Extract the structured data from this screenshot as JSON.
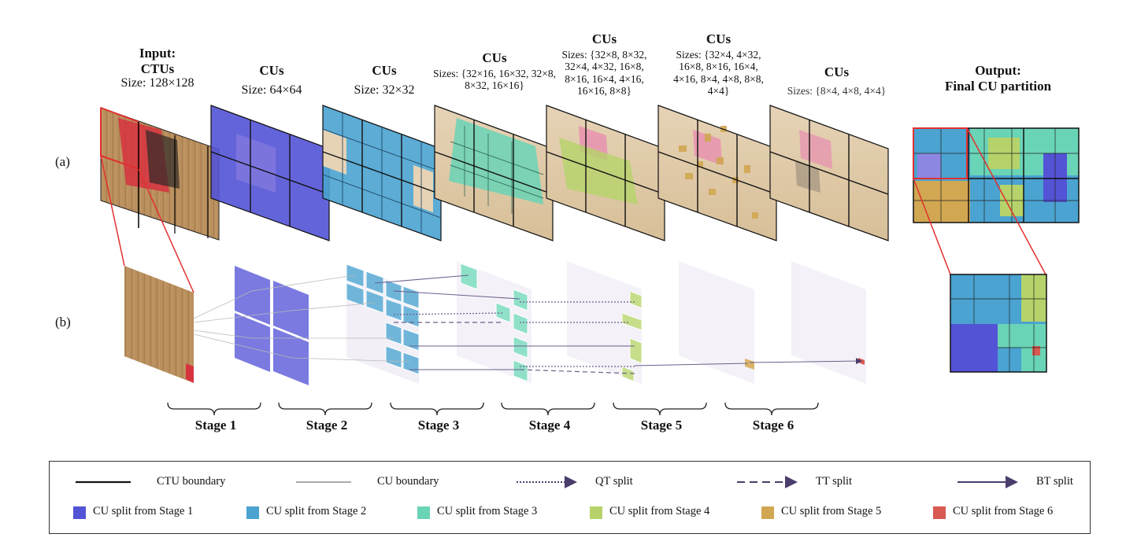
{
  "columns": [
    {
      "head1": "Input:",
      "head2": "CTUs",
      "size": "Size: 128×128"
    },
    {
      "head1": "CUs",
      "head2": "",
      "size": "Size: 64×64"
    },
    {
      "head1": "CUs",
      "head2": "",
      "size": "Size: 32×32"
    },
    {
      "head1": "CUs",
      "head2": "",
      "size": "Sizes: {32×16, 16×32, 32×8, 8×32, 16×16}"
    },
    {
      "head1": "CUs",
      "head2": "",
      "size": "Sizes: {32×8, 8×32, 32×4, 4×32, 16×8, 8×16, 16×4, 4×16, 16×16, 8×8}"
    },
    {
      "head1": "CUs",
      "head2": "",
      "size": "Sizes: {32×4, 4×32, 16×8, 8×16, 16×4, 4×16, 8×4, 4×8, 8×8, 4×4}"
    },
    {
      "head1": "CUs",
      "head2": "",
      "size": "Sizes: {8×4, 4×8, 4×4}"
    },
    {
      "head1": "Output:",
      "head2": "Final CU partition",
      "size": ""
    }
  ],
  "row_labels": {
    "a": "(a)",
    "b": "(b)"
  },
  "stages": [
    "Stage 1",
    "Stage 2",
    "Stage 3",
    "Stage 4",
    "Stage 5",
    "Stage 6"
  ],
  "legend": {
    "lines": [
      {
        "label": "CTU boundary",
        "style": "ctu-solid"
      },
      {
        "label": "CU boundary",
        "style": "cu-solid"
      },
      {
        "label": "QT split",
        "style": "dotted-arrow"
      },
      {
        "label": "TT split",
        "style": "dashed-arrow"
      },
      {
        "label": "BT split",
        "style": "solid-arrow"
      }
    ],
    "swatches": [
      {
        "label": "CU split from Stage 1",
        "color": "#5353d6"
      },
      {
        "label": "CU split from Stage 2",
        "color": "#4aa3d0"
      },
      {
        "label": "CU split from Stage 3",
        "color": "#6ad4b6"
      },
      {
        "label": "CU split from Stage 4",
        "color": "#b5d36a"
      },
      {
        "label": "CU split from Stage 5",
        "color": "#d1a752"
      },
      {
        "label": "CU split from Stage 6",
        "color": "#d85a52"
      }
    ]
  }
}
